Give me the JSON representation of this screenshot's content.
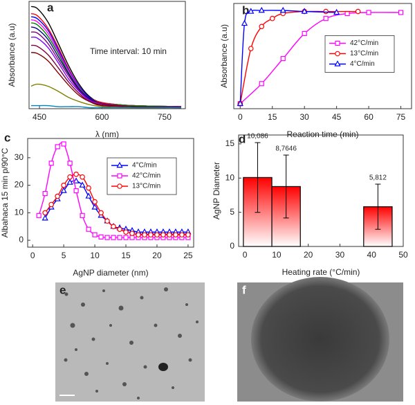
{
  "chart_data": [
    {
      "type": "line",
      "label": "a",
      "x": [
        430,
        445,
        470,
        495,
        520,
        545,
        570,
        600,
        675,
        790
      ],
      "xlim": [
        425,
        800
      ],
      "xticks": [
        450,
        600,
        750
      ],
      "ylim": [
        0,
        1.05
      ],
      "xlabel": "λ (nm)",
      "ylabel": "Absorbance (a.u)",
      "annotation": "Time interval: 10 min",
      "series": [
        {
          "color": "#000000",
          "values": [
            1.0,
            0.98,
            0.85,
            0.64,
            0.42,
            0.24,
            0.12,
            0.06,
            0.03,
            0.02
          ]
        },
        {
          "color": "#ff0000",
          "values": [
            0.93,
            0.91,
            0.79,
            0.6,
            0.39,
            0.22,
            0.11,
            0.06,
            0.03,
            0.02
          ]
        },
        {
          "color": "#0000ff",
          "values": [
            0.9,
            0.88,
            0.77,
            0.58,
            0.38,
            0.22,
            0.11,
            0.05,
            0.03,
            0.02
          ]
        },
        {
          "color": "#ff00ff",
          "values": [
            0.87,
            0.85,
            0.74,
            0.56,
            0.37,
            0.21,
            0.1,
            0.05,
            0.03,
            0.02
          ]
        },
        {
          "color": "#008000",
          "values": [
            0.84,
            0.82,
            0.71,
            0.54,
            0.35,
            0.2,
            0.1,
            0.05,
            0.03,
            0.02
          ]
        },
        {
          "color": "#000080",
          "values": [
            0.8,
            0.78,
            0.68,
            0.51,
            0.34,
            0.19,
            0.1,
            0.05,
            0.02,
            0.02
          ]
        },
        {
          "color": "#800080",
          "values": [
            0.75,
            0.74,
            0.64,
            0.48,
            0.32,
            0.18,
            0.09,
            0.05,
            0.02,
            0.02
          ]
        },
        {
          "color": "#8000ff",
          "values": [
            0.7,
            0.69,
            0.6,
            0.45,
            0.29,
            0.17,
            0.08,
            0.04,
            0.02,
            0.01
          ]
        },
        {
          "color": "#800040",
          "values": [
            0.62,
            0.61,
            0.53,
            0.4,
            0.26,
            0.15,
            0.07,
            0.04,
            0.02,
            0.01
          ]
        },
        {
          "color": "#800000",
          "values": [
            0.55,
            0.54,
            0.47,
            0.35,
            0.23,
            0.13,
            0.07,
            0.03,
            0.02,
            0.01
          ]
        },
        {
          "color": "#808000",
          "values": [
            0.22,
            0.24,
            0.22,
            0.17,
            0.11,
            0.07,
            0.04,
            0.02,
            0.01,
            0.01
          ]
        },
        {
          "color": "#0080c0",
          "values": [
            0.03,
            0.03,
            0.03,
            0.02,
            0.02,
            0.02,
            0.01,
            0.01,
            0.01,
            0.01
          ]
        }
      ]
    },
    {
      "type": "line",
      "label": "b",
      "xlim": [
        -3,
        80
      ],
      "xticks": [
        0,
        15,
        30,
        45,
        60,
        75
      ],
      "ylim": [
        0,
        1.05
      ],
      "xlabel": "Reaction time (min)",
      "ylabel": "Absorbance (a.u)",
      "legend": "center-right",
      "series": [
        {
          "name": "42°C/min",
          "color": "#ff00ff",
          "marker": "square",
          "x": [
            0,
            10,
            20,
            30,
            40,
            50,
            60,
            75
          ],
          "values": [
            0.05,
            0.25,
            0.5,
            0.75,
            0.9,
            0.95,
            0.96,
            0.96
          ]
        },
        {
          "name": "13°C/min",
          "color": "#ff0000",
          "marker": "circle",
          "x": [
            0,
            5,
            10,
            15,
            20,
            30,
            40,
            55
          ],
          "values": [
            0.05,
            0.6,
            0.82,
            0.9,
            0.95,
            0.97,
            0.97,
            0.97
          ]
        },
        {
          "name": "4°C/min",
          "color": "#0000ff",
          "marker": "triangle",
          "x": [
            0,
            2,
            5,
            10,
            20,
            30,
            45
          ],
          "values": [
            0.05,
            0.85,
            0.97,
            0.98,
            0.98,
            0.97,
            0.96
          ]
        }
      ]
    },
    {
      "type": "line",
      "label": "c",
      "xlim": [
        -0.8,
        25.9
      ],
      "xticks": [
        0,
        5,
        10,
        15,
        20,
        25
      ],
      "ylim": [
        -2.5,
        37
      ],
      "yticks": [
        0,
        10,
        20,
        30
      ],
      "xlabel": "AgNP diameter (nm)",
      "ylabel": "Albahaca 15 min p/90°C",
      "legend": "top-right",
      "series": [
        {
          "name": "4°C/min",
          "color": "#0000ff",
          "marker": "triangle",
          "x": [
            2,
            3,
            4,
            5,
            6,
            7,
            8,
            9,
            10,
            11,
            12,
            13,
            14,
            15,
            16,
            17,
            18,
            19,
            20,
            21,
            22,
            23,
            24,
            25
          ],
          "values": [
            8,
            12,
            15,
            18,
            21,
            21.5,
            20,
            16,
            12,
            9,
            7,
            5,
            4.5,
            4,
            3.5,
            3,
            3,
            3,
            3,
            3,
            3,
            3,
            3,
            3
          ]
        },
        {
          "name": "42°C/min",
          "color": "#ff00ff",
          "marker": "square",
          "x": [
            1,
            2,
            3,
            4,
            5,
            6,
            7,
            8,
            9,
            10,
            11,
            12,
            13,
            14,
            15,
            16,
            17,
            18,
            19,
            20,
            21,
            22,
            23,
            24,
            25
          ],
          "values": [
            9,
            17,
            28,
            34,
            35,
            28,
            18,
            9,
            4,
            2,
            1.2,
            1,
            1,
            1,
            1,
            1,
            1,
            1,
            1,
            1,
            1,
            1,
            1,
            1,
            1
          ]
        },
        {
          "name": "13°C/min",
          "color": "#ff0000",
          "marker": "circle",
          "x": [
            2,
            3,
            4,
            5,
            6,
            7,
            8,
            9,
            10,
            11,
            12,
            13,
            14,
            15,
            16,
            17,
            18,
            19,
            20,
            21,
            22,
            23,
            24,
            25
          ],
          "values": [
            10,
            13,
            16,
            20,
            23,
            24,
            23,
            19,
            14,
            10,
            7,
            5,
            4,
            3,
            2.5,
            2,
            2,
            2,
            2,
            2,
            2,
            2,
            2,
            2
          ]
        }
      ]
    },
    {
      "type": "bar",
      "label": "d",
      "x": [
        4,
        13,
        42
      ],
      "values": [
        10.086,
        8.7646,
        5.812
      ],
      "value_labels": [
        "10,086",
        "8,7646",
        "5,812"
      ],
      "errors": [
        5.1,
        4.6,
        3.3
      ],
      "color": "#ff0000",
      "xlim": [
        -2,
        50
      ],
      "xticks": [
        0,
        10,
        20,
        30,
        40,
        50
      ],
      "ylim": [
        0,
        16.3
      ],
      "yticks": [
        0,
        5,
        10,
        15
      ],
      "xlabel": "Heating rate (°C/min)",
      "ylabel": "AgNP Diameter"
    }
  ],
  "images": [
    {
      "label": "e"
    },
    {
      "label": "f"
    }
  ]
}
